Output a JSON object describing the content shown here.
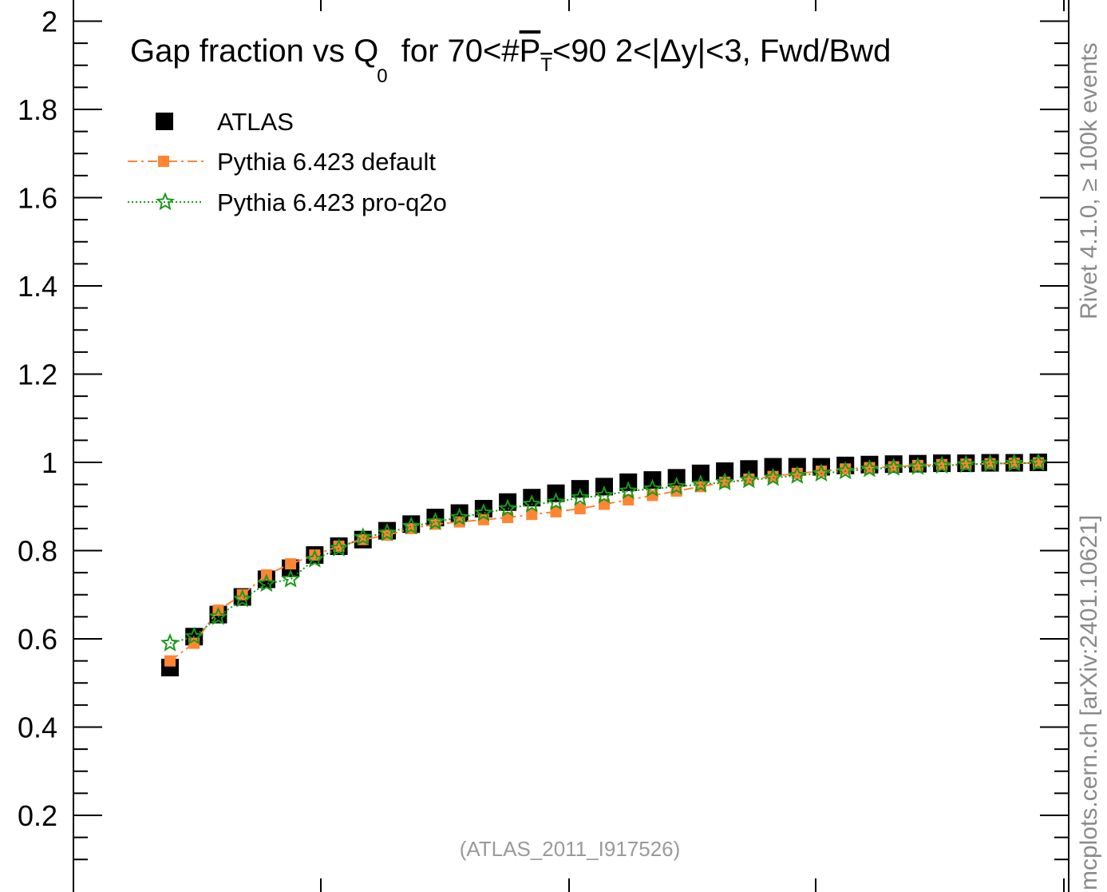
{
  "chart_data": {
    "type": "scatter",
    "title": {
      "pre": "Gap fraction vs Q",
      "sub": "0",
      "mid": " for 70<#",
      "over_main": "P",
      "over_sub": "T",
      "post": "<90  2<|Δy|<3, Fwd/Bwd"
    },
    "xlabel": "",
    "ylabel": "",
    "ylim": [
      0.1,
      2.05
    ],
    "xlim": [
      0,
      38.0
    ],
    "yticks": [
      0.2,
      0.4,
      0.6,
      0.8,
      1,
      1.2,
      1.4,
      1.6,
      1.8,
      2
    ],
    "ytick_labels": [
      "0.2",
      "0.4",
      "0.6",
      "0.8",
      "1",
      "1.2",
      "1.4",
      "1.6",
      "1.8",
      "2"
    ],
    "legend_position": "top-left",
    "series": [
      {
        "name": "ATLAS",
        "style": "black-square",
        "color": "#000000",
        "x": [
          1,
          2,
          3,
          4,
          5,
          6,
          7,
          8,
          9,
          10,
          11,
          12,
          13,
          14,
          15,
          16,
          17,
          18,
          19,
          20,
          21,
          22,
          23,
          24,
          25,
          26,
          27,
          28,
          29,
          30,
          31,
          32,
          33,
          34,
          35,
          36,
          37
        ],
        "y": [
          0.535,
          0.605,
          0.655,
          0.695,
          0.735,
          0.76,
          0.79,
          0.81,
          0.825,
          0.845,
          0.86,
          0.875,
          0.885,
          0.895,
          0.91,
          0.92,
          0.93,
          0.94,
          0.945,
          0.955,
          0.96,
          0.965,
          0.975,
          0.98,
          0.985,
          0.99,
          0.99,
          0.99,
          0.993,
          0.995,
          0.996,
          0.997,
          0.998,
          0.998,
          0.999,
          0.999,
          1.0
        ]
      },
      {
        "name": "Pythia 6.423 default",
        "style": "orange-dashdot-square",
        "color": "#ff8533",
        "x": [
          1,
          2,
          3,
          4,
          5,
          6,
          7,
          8,
          9,
          10,
          11,
          12,
          13,
          14,
          15,
          16,
          17,
          18,
          19,
          20,
          21,
          22,
          23,
          24,
          25,
          26,
          27,
          28,
          29,
          30,
          31,
          32,
          33,
          34,
          35,
          36,
          37
        ],
        "y": [
          0.55,
          0.59,
          0.665,
          0.7,
          0.745,
          0.77,
          0.79,
          0.81,
          0.825,
          0.835,
          0.85,
          0.86,
          0.865,
          0.87,
          0.875,
          0.882,
          0.888,
          0.895,
          0.905,
          0.915,
          0.925,
          0.935,
          0.945,
          0.955,
          0.962,
          0.968,
          0.975,
          0.98,
          0.985,
          0.988,
          0.99,
          0.993,
          0.995,
          0.996,
          0.997,
          0.998,
          0.999
        ]
      },
      {
        "name": "Pythia 6.423 pro-q2o",
        "style": "green-dotted-star",
        "color": "#1a9a1a",
        "x": [
          1,
          2,
          3,
          4,
          5,
          6,
          7,
          8,
          9,
          10,
          11,
          12,
          13,
          14,
          15,
          16,
          17,
          18,
          19,
          20,
          21,
          22,
          23,
          24,
          25,
          26,
          27,
          28,
          29,
          30,
          31,
          32,
          33,
          34,
          35,
          36,
          37
        ],
        "y": [
          0.59,
          0.605,
          0.65,
          0.69,
          0.725,
          0.735,
          0.78,
          0.805,
          0.83,
          0.84,
          0.855,
          0.865,
          0.875,
          0.885,
          0.895,
          0.905,
          0.91,
          0.92,
          0.925,
          0.935,
          0.94,
          0.945,
          0.95,
          0.955,
          0.96,
          0.965,
          0.97,
          0.975,
          0.98,
          0.985,
          0.988,
          0.99,
          0.993,
          0.995,
          0.997,
          0.998,
          0.999
        ]
      }
    ],
    "annotation": "(ATLAS_2011_I917526)",
    "side_text": {
      "upper": "Rivet 4.1.0, ≥ 100k events",
      "lower": "mcplots.cern.ch [arXiv:2401.10621]"
    },
    "colors": {
      "atlas": "#000000",
      "default": "#ff8533",
      "proq2o": "#1a9a1a",
      "side_text": "#8a8a8a"
    }
  }
}
